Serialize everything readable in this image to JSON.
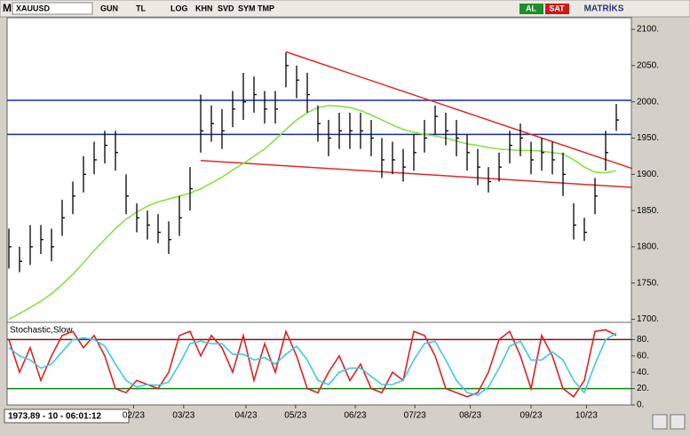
{
  "toolbar": {
    "logo": "M",
    "symbol": "XAUUSD",
    "buttons": [
      "GUN",
      "TL",
      "LOG",
      "KHN",
      "SVD",
      "SYM",
      "TMP"
    ],
    "buy": "AL",
    "sell": "SAT",
    "brand": "MATRİKS"
  },
  "status": "1973.89 - 10 - 06:01:12",
  "chart_data": [
    {
      "type": "ohlc",
      "color": "#000000",
      "high": [
        1825,
        1800,
        1830,
        1830,
        1825,
        1865,
        1890,
        1925,
        1945,
        1960,
        1960,
        1900,
        1860,
        1850,
        1845,
        1835,
        1870,
        1910,
        2010,
        1995,
        1990,
        2015,
        2040,
        2035,
        2015,
        2015,
        2068,
        2050,
        2040,
        1995,
        1975,
        1985,
        1985,
        1985,
        1975,
        1950,
        1945,
        1935,
        1955,
        1975,
        1995,
        1985,
        1975,
        1955,
        1935,
        1910,
        1930,
        1960,
        1970,
        1945,
        1950,
        1945,
        1930,
        1860,
        1840,
        1895,
        1960,
        1997
      ],
      "low": [
        1770,
        1765,
        1775,
        1790,
        1780,
        1815,
        1845,
        1875,
        1900,
        1915,
        1905,
        1845,
        1820,
        1810,
        1805,
        1790,
        1815,
        1850,
        1930,
        1945,
        1935,
        1965,
        1975,
        1985,
        1970,
        1970,
        2020,
        2005,
        1985,
        1945,
        1925,
        1935,
        1935,
        1935,
        1925,
        1895,
        1900,
        1890,
        1905,
        1930,
        1955,
        1940,
        1925,
        1905,
        1885,
        1875,
        1890,
        1915,
        1925,
        1900,
        1905,
        1900,
        1870,
        1810,
        1808,
        1845,
        1905,
        1960
      ],
      "close": [
        1800,
        1780,
        1800,
        1810,
        1800,
        1840,
        1870,
        1900,
        1920,
        1940,
        1930,
        1870,
        1840,
        1830,
        1820,
        1810,
        1840,
        1880,
        1960,
        1970,
        1960,
        1990,
        2000,
        2010,
        1990,
        1990,
        2050,
        2030,
        2010,
        1970,
        1950,
        1960,
        1960,
        1960,
        1950,
        1920,
        1920,
        1910,
        1930,
        1950,
        1980,
        1960,
        1950,
        1930,
        1910,
        1890,
        1910,
        1940,
        1950,
        1920,
        1930,
        1920,
        1900,
        1830,
        1820,
        1870,
        1930,
        1975
      ],
      "series": [
        {
          "color": "#88e044",
          "values": [
            1700,
            1708,
            1716,
            1725,
            1735,
            1748,
            1762,
            1778,
            1795,
            1810,
            1825,
            1838,
            1848,
            1856,
            1862,
            1866,
            1870,
            1874,
            1880,
            1888,
            1896,
            1906,
            1915,
            1925,
            1935,
            1948,
            1962,
            1975,
            1985,
            1992,
            1995,
            1994,
            1992,
            1988,
            1982,
            1975,
            1968,
            1962,
            1958,
            1955,
            1953,
            1950,
            1946,
            1942,
            1940,
            1937,
            1935,
            1934,
            1933,
            1933,
            1932,
            1930,
            1928,
            1920,
            1910,
            1903,
            1902,
            1905
          ]
        }
      ],
      "hlines": [
        {
          "value": 2002,
          "color": "#1a2a9a"
        },
        {
          "value": 1955,
          "color": "#1a2a9a"
        }
      ],
      "trendlines": [
        {
          "x": [
            26,
            58.5
          ],
          "y": [
            2069,
            1908
          ],
          "color": "#e02828"
        },
        {
          "x": [
            18,
            58.5
          ],
          "y": [
            1919,
            1882
          ],
          "color": "#e02828"
        }
      ],
      "ylim": [
        1697,
        2116
      ],
      "yticks": [
        {
          "value": 2100,
          "label": "2100."
        },
        {
          "value": 2050,
          "label": "2050."
        },
        {
          "value": 2000,
          "label": "2000."
        },
        {
          "value": 1950,
          "label": "1950."
        },
        {
          "value": 1900,
          "label": "1900."
        },
        {
          "value": 1850,
          "label": "1850."
        },
        {
          "value": 1800,
          "label": "1800."
        },
        {
          "value": 1750,
          "label": "1750."
        },
        {
          "value": 1700,
          "label": "1700."
        }
      ],
      "xticks": [
        {
          "value": 11.7,
          "label": "02/23"
        },
        {
          "value": 16.4,
          "label": "03/23"
        },
        {
          "value": 22.25,
          "label": "04/23"
        },
        {
          "value": 26.9,
          "label": "05/23"
        },
        {
          "value": 32.5,
          "label": "06/23"
        },
        {
          "value": 38.1,
          "label": "07/23"
        },
        {
          "value": 43.3,
          "label": "08/23"
        },
        {
          "value": 49,
          "label": "09/23"
        },
        {
          "value": 54.2,
          "label": "10/23"
        }
      ]
    },
    {
      "type": "line",
      "title": "Stochastic,Slow",
      "series": [
        {
          "color": "#e02020",
          "values": [
            80,
            40,
            70,
            30,
            60,
            85,
            90,
            70,
            85,
            60,
            20,
            15,
            30,
            25,
            20,
            40,
            85,
            90,
            60,
            85,
            70,
            40,
            85,
            30,
            75,
            40,
            90,
            60,
            20,
            15,
            40,
            60,
            30,
            50,
            20,
            15,
            40,
            30,
            90,
            85,
            60,
            20,
            15,
            10,
            15,
            40,
            80,
            90,
            60,
            20,
            85,
            60,
            20,
            10,
            30,
            90,
            92,
            85
          ]
        },
        {
          "color": "#40c8e0",
          "values": [
            70,
            60,
            55,
            45,
            50,
            65,
            80,
            82,
            80,
            72,
            50,
            30,
            22,
            25,
            24,
            28,
            50,
            75,
            78,
            75,
            75,
            62,
            62,
            55,
            58,
            50,
            62,
            72,
            55,
            30,
            25,
            40,
            45,
            45,
            35,
            25,
            25,
            30,
            55,
            75,
            78,
            55,
            30,
            15,
            12,
            22,
            45,
            72,
            78,
            55,
            55,
            65,
            55,
            30,
            15,
            50,
            80,
            88
          ]
        }
      ],
      "hlines": [
        {
          "value": 80,
          "color": "#8b1010"
        },
        {
          "value": 20,
          "color": "#108010"
        }
      ],
      "ylim": [
        0,
        100
      ],
      "yticks": [
        {
          "value": 80,
          "label": "80."
        },
        {
          "value": 60,
          "label": "60."
        },
        {
          "value": 40,
          "label": "40."
        },
        {
          "value": 20,
          "label": "20."
        },
        {
          "value": 0,
          "label": "0."
        }
      ]
    }
  ]
}
